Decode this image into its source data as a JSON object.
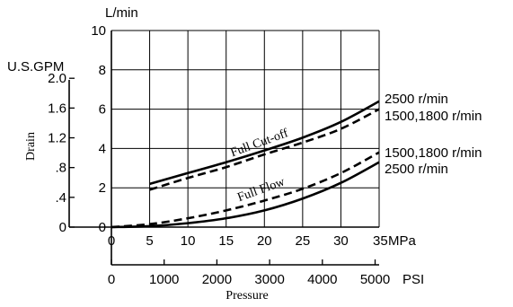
{
  "chart_data": {
    "type": "line",
    "title": "",
    "xlabel": "Pressure",
    "ylabel": "Drain",
    "x_unit_mpa": "MPa",
    "x_unit_psi": "PSI",
    "y_unit_lmin": "L/min",
    "y_unit_gpm": "U.S.GPM",
    "x_mpa_ticks": [
      "0",
      "5",
      "10",
      "15",
      "20",
      "25",
      "30",
      "35"
    ],
    "x_psi_ticks": [
      "0",
      "1000",
      "2000",
      "3000",
      "4000",
      "5000"
    ],
    "y_lmin_ticks": [
      "0",
      "2",
      "4",
      "6",
      "8",
      "10"
    ],
    "y_gpm_ticks": [
      "0",
      ".4",
      ".8",
      "1.2",
      "1.6",
      "2.0"
    ],
    "xlim": [
      0,
      35
    ],
    "ylim": [
      0,
      10
    ],
    "grid": true,
    "annotations": {
      "cutoff": "Full Cut-off",
      "flow": "Full Flow"
    },
    "series": [
      {
        "name": "2500 r/min",
        "group": "Full Cut-off",
        "style": "solid",
        "x": [
          5,
          10,
          15,
          20,
          25,
          30,
          35
        ],
        "y": [
          2.2,
          2.75,
          3.3,
          3.9,
          4.55,
          5.35,
          6.4
        ]
      },
      {
        "name": "1500,1800 r/min",
        "group": "Full Cut-off",
        "style": "dashed",
        "x": [
          5,
          10,
          15,
          20,
          25,
          30,
          35
        ],
        "y": [
          1.9,
          2.5,
          3.05,
          3.7,
          4.3,
          5.0,
          6.0
        ]
      },
      {
        "name": "1500,1800 r/min",
        "group": "Full Flow",
        "style": "dashed",
        "x": [
          0,
          5,
          10,
          15,
          20,
          25,
          30,
          35
        ],
        "y": [
          0.0,
          0.15,
          0.45,
          0.85,
          1.35,
          1.95,
          2.75,
          3.8
        ]
      },
      {
        "name": "2500 r/min",
        "group": "Full Flow",
        "style": "solid",
        "x": [
          0,
          5,
          10,
          15,
          20,
          25,
          30,
          35
        ],
        "y": [
          0.0,
          0.05,
          0.2,
          0.45,
          0.85,
          1.45,
          2.25,
          3.3
        ]
      }
    ]
  }
}
